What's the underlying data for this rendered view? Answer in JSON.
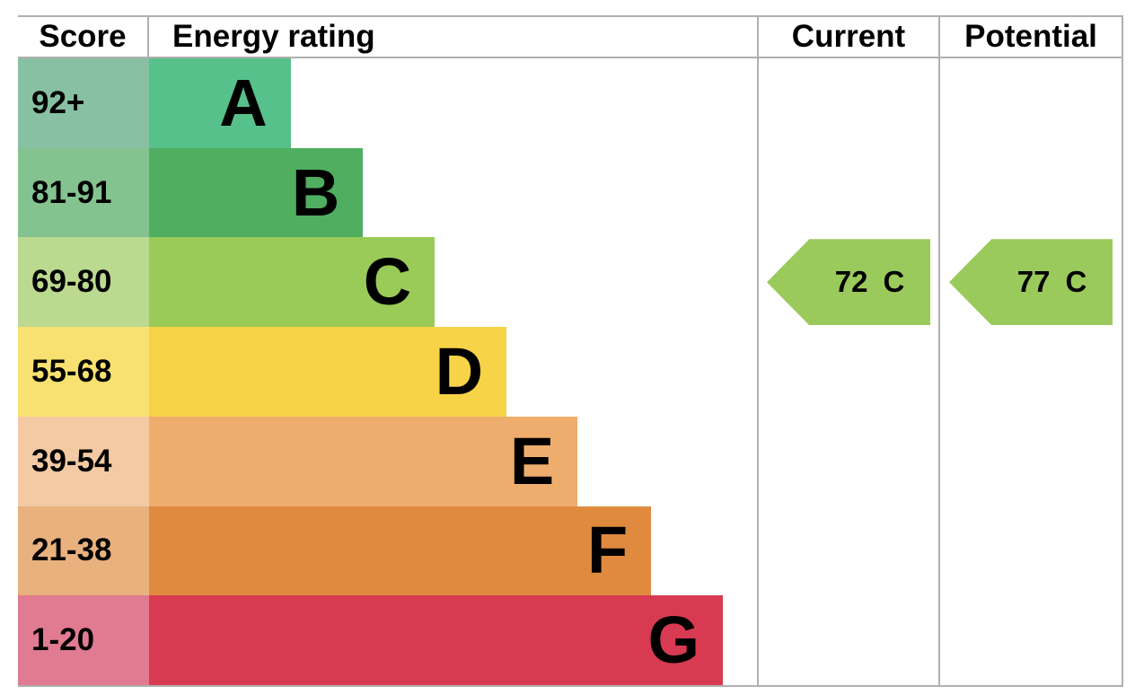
{
  "header": {
    "score": "Score",
    "energy_rating": "Energy rating",
    "current": "Current",
    "potential": "Potential"
  },
  "chart_data": {
    "type": "bar",
    "chart_kind": "epc-energy-efficiency-rating",
    "orientation": "horizontal",
    "columns": [
      "Score",
      "Energy rating",
      "Current",
      "Potential"
    ],
    "bands": [
      {
        "letter": "A",
        "score_range": "92+",
        "bar_length_pct": 23.3,
        "bar_color": "#56c18b",
        "score_cell_color": "#87c0a2"
      },
      {
        "letter": "B",
        "score_range": "81-91",
        "bar_length_pct": 35.2,
        "bar_color": "#50ae60",
        "score_cell_color": "#84c290"
      },
      {
        "letter": "C",
        "score_range": "69-80",
        "bar_length_pct": 47.0,
        "bar_color": "#9aca58",
        "score_cell_color": "#bbd98f"
      },
      {
        "letter": "D",
        "score_range": "55-68",
        "bar_length_pct": 58.8,
        "bar_color": "#f7d348",
        "score_cell_color": "#f8e170"
      },
      {
        "letter": "E",
        "score_range": "39-54",
        "bar_length_pct": 70.5,
        "bar_color": "#eead6c",
        "score_cell_color": "#f3caa3"
      },
      {
        "letter": "F",
        "score_range": "21-38",
        "bar_length_pct": 82.6,
        "bar_color": "#e08a3f",
        "score_cell_color": "#e9b17e"
      },
      {
        "letter": "G",
        "score_range": "1-20",
        "bar_length_pct": 94.4,
        "bar_color": "#d83a52",
        "score_cell_color": "#e17b91"
      }
    ],
    "markers": {
      "current": {
        "value": "72",
        "band": "C",
        "band_index": 2,
        "arrow_color": "#9bca5c"
      },
      "potential": {
        "value": "77",
        "band": "C",
        "band_index": 2,
        "arrow_color": "#9bca5c"
      }
    }
  },
  "style": {
    "border_color": "#b0b0b0",
    "text_color": "#000000",
    "background": "#ffffff"
  }
}
